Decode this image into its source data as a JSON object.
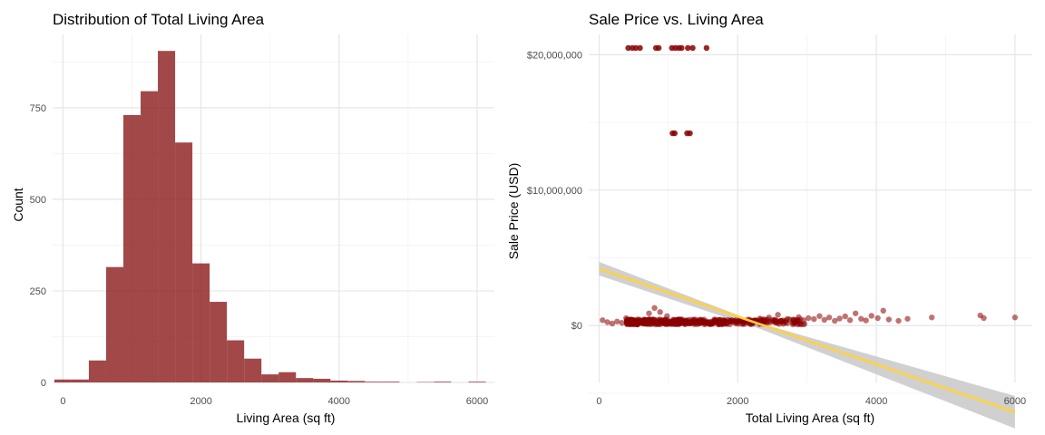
{
  "chart_data": [
    {
      "type": "bar",
      "subtype": "histogram",
      "title": "Distribution of Total Living Area",
      "xlabel": "Living Area (sq ft)",
      "ylabel": "Count",
      "xlim": [
        -150,
        6250
      ],
      "ylim": [
        0,
        950
      ],
      "xticks": [
        0,
        2000,
        4000,
        6000
      ],
      "yticks": [
        0,
        250,
        500,
        750
      ],
      "bin_width": 250,
      "bins_start": [
        -125,
        125,
        375,
        625,
        875,
        1125,
        1375,
        1625,
        1875,
        2125,
        2375,
        2625,
        2875,
        3125,
        3375,
        3625,
        3875,
        4125,
        4375,
        4625,
        4875,
        5125,
        5375,
        5625,
        5875
      ],
      "values": [
        8,
        8,
        60,
        315,
        730,
        795,
        905,
        655,
        325,
        220,
        115,
        65,
        22,
        28,
        12,
        10,
        5,
        4,
        2,
        2,
        0,
        1,
        2,
        0,
        2
      ],
      "bar_color": "#8b1a1a",
      "grid": true
    },
    {
      "type": "scatter",
      "title": "Sale Price vs. Living Area",
      "xlabel": "Total Living Area (sq ft)",
      "ylabel": "Sale Price (USD)",
      "xlim": [
        -150,
        6250
      ],
      "ylim": [
        -4200000,
        21500000
      ],
      "xticks": [
        0,
        2000,
        4000,
        6000
      ],
      "yticks": [
        0,
        10000000,
        20000000
      ],
      "ytick_labels": [
        "$0",
        "$10,000,000",
        "$20,000,000"
      ],
      "point_color": "#8b0000",
      "outliers": [
        {
          "x": 420,
          "y": 20500000
        },
        {
          "x": 480,
          "y": 20500000
        },
        {
          "x": 530,
          "y": 20500000
        },
        {
          "x": 590,
          "y": 20500000
        },
        {
          "x": 820,
          "y": 20500000
        },
        {
          "x": 860,
          "y": 20500000
        },
        {
          "x": 1050,
          "y": 20500000
        },
        {
          "x": 1100,
          "y": 20500000
        },
        {
          "x": 1150,
          "y": 20500000
        },
        {
          "x": 1190,
          "y": 20500000
        },
        {
          "x": 1280,
          "y": 20500000
        },
        {
          "x": 1350,
          "y": 20500000
        },
        {
          "x": 1550,
          "y": 20500000
        },
        {
          "x": 1060,
          "y": 14200000
        },
        {
          "x": 1090,
          "y": 14200000
        },
        {
          "x": 1270,
          "y": 14200000
        },
        {
          "x": 1310,
          "y": 14200000
        }
      ],
      "bulk_points": [
        {
          "x": 50,
          "y": 400000
        },
        {
          "x": 120,
          "y": 250000
        },
        {
          "x": 190,
          "y": 150000
        },
        {
          "x": 260,
          "y": 300000
        },
        {
          "x": 330,
          "y": 200000
        },
        {
          "x": 390,
          "y": 550000
        },
        {
          "x": 450,
          "y": 250000
        },
        {
          "x": 510,
          "y": 180000
        },
        {
          "x": 560,
          "y": 350000
        },
        {
          "x": 620,
          "y": 220000
        },
        {
          "x": 680,
          "y": 130000
        },
        {
          "x": 720,
          "y": 900000
        },
        {
          "x": 760,
          "y": 300000
        },
        {
          "x": 800,
          "y": 1300000
        },
        {
          "x": 840,
          "y": 250000
        },
        {
          "x": 880,
          "y": 1000000
        },
        {
          "x": 910,
          "y": 400000
        },
        {
          "x": 950,
          "y": 180000
        },
        {
          "x": 980,
          "y": 700000
        },
        {
          "x": 1010,
          "y": 250000
        },
        {
          "x": 1040,
          "y": 120000
        },
        {
          "x": 1070,
          "y": 300000
        },
        {
          "x": 1100,
          "y": 200000
        },
        {
          "x": 1130,
          "y": 450000
        },
        {
          "x": 1160,
          "y": 160000
        },
        {
          "x": 1190,
          "y": 280000
        },
        {
          "x": 1220,
          "y": 220000
        },
        {
          "x": 1250,
          "y": 380000
        },
        {
          "x": 1280,
          "y": 150000
        },
        {
          "x": 1310,
          "y": 260000
        },
        {
          "x": 1340,
          "y": 210000
        },
        {
          "x": 1370,
          "y": 330000
        },
        {
          "x": 1400,
          "y": 180000
        },
        {
          "x": 1430,
          "y": 290000
        },
        {
          "x": 1460,
          "y": 240000
        },
        {
          "x": 1490,
          "y": 360000
        },
        {
          "x": 1520,
          "y": 200000
        },
        {
          "x": 1550,
          "y": 310000
        },
        {
          "x": 1580,
          "y": 230000
        },
        {
          "x": 1610,
          "y": 280000
        },
        {
          "x": 1640,
          "y": 190000
        },
        {
          "x": 1670,
          "y": 350000
        },
        {
          "x": 1700,
          "y": 250000
        },
        {
          "x": 1730,
          "y": 400000
        },
        {
          "x": 1760,
          "y": 220000
        },
        {
          "x": 1790,
          "y": 300000
        },
        {
          "x": 1820,
          "y": 260000
        },
        {
          "x": 1860,
          "y": 420000
        },
        {
          "x": 1900,
          "y": 280000
        },
        {
          "x": 1950,
          "y": 330000
        },
        {
          "x": 2000,
          "y": 270000
        },
        {
          "x": 2050,
          "y": 390000
        },
        {
          "x": 2100,
          "y": 310000
        },
        {
          "x": 2150,
          "y": 450000
        },
        {
          "x": 2200,
          "y": 300000
        },
        {
          "x": 2260,
          "y": 380000
        },
        {
          "x": 2320,
          "y": 520000
        },
        {
          "x": 2380,
          "y": 340000
        },
        {
          "x": 2450,
          "y": 600000
        },
        {
          "x": 2520,
          "y": 420000
        },
        {
          "x": 2580,
          "y": 800000
        },
        {
          "x": 2650,
          "y": 380000
        },
        {
          "x": 2720,
          "y": 500000
        },
        {
          "x": 2800,
          "y": 450000
        },
        {
          "x": 2880,
          "y": 620000
        },
        {
          "x": 2950,
          "y": 400000
        },
        {
          "x": 3020,
          "y": 550000
        },
        {
          "x": 3100,
          "y": 480000
        },
        {
          "x": 3180,
          "y": 700000
        },
        {
          "x": 3250,
          "y": 420000
        },
        {
          "x": 3320,
          "y": 600000
        },
        {
          "x": 3400,
          "y": 350000
        },
        {
          "x": 3470,
          "y": 520000
        },
        {
          "x": 3550,
          "y": 680000
        },
        {
          "x": 3620,
          "y": 400000
        },
        {
          "x": 3700,
          "y": 900000
        },
        {
          "x": 3780,
          "y": 500000
        },
        {
          "x": 3850,
          "y": 380000
        },
        {
          "x": 3930,
          "y": 720000
        },
        {
          "x": 4020,
          "y": 550000
        },
        {
          "x": 4100,
          "y": 1100000
        },
        {
          "x": 4180,
          "y": 450000
        },
        {
          "x": 4320,
          "y": 350000
        },
        {
          "x": 4450,
          "y": 500000
        },
        {
          "x": 4800,
          "y": 600000
        },
        {
          "x": 5500,
          "y": 750000
        },
        {
          "x": 5550,
          "y": 550000
        },
        {
          "x": 6000,
          "y": 600000
        }
      ],
      "trend": {
        "color": "#ffd23f",
        "band_color": "#c8c8c8",
        "line": [
          {
            "x": 0,
            "y": 4200000
          },
          {
            "x": 6000,
            "y": -6400000
          }
        ],
        "band_upper": [
          {
            "x": 0,
            "y": 4700000
          },
          {
            "x": 2300,
            "y": 200000
          },
          {
            "x": 6000,
            "y": -5200000
          }
        ],
        "band_lower": [
          {
            "x": 0,
            "y": 3700000
          },
          {
            "x": 2300,
            "y": -200000
          },
          {
            "x": 6000,
            "y": -7600000
          }
        ]
      },
      "grid": true
    }
  ]
}
